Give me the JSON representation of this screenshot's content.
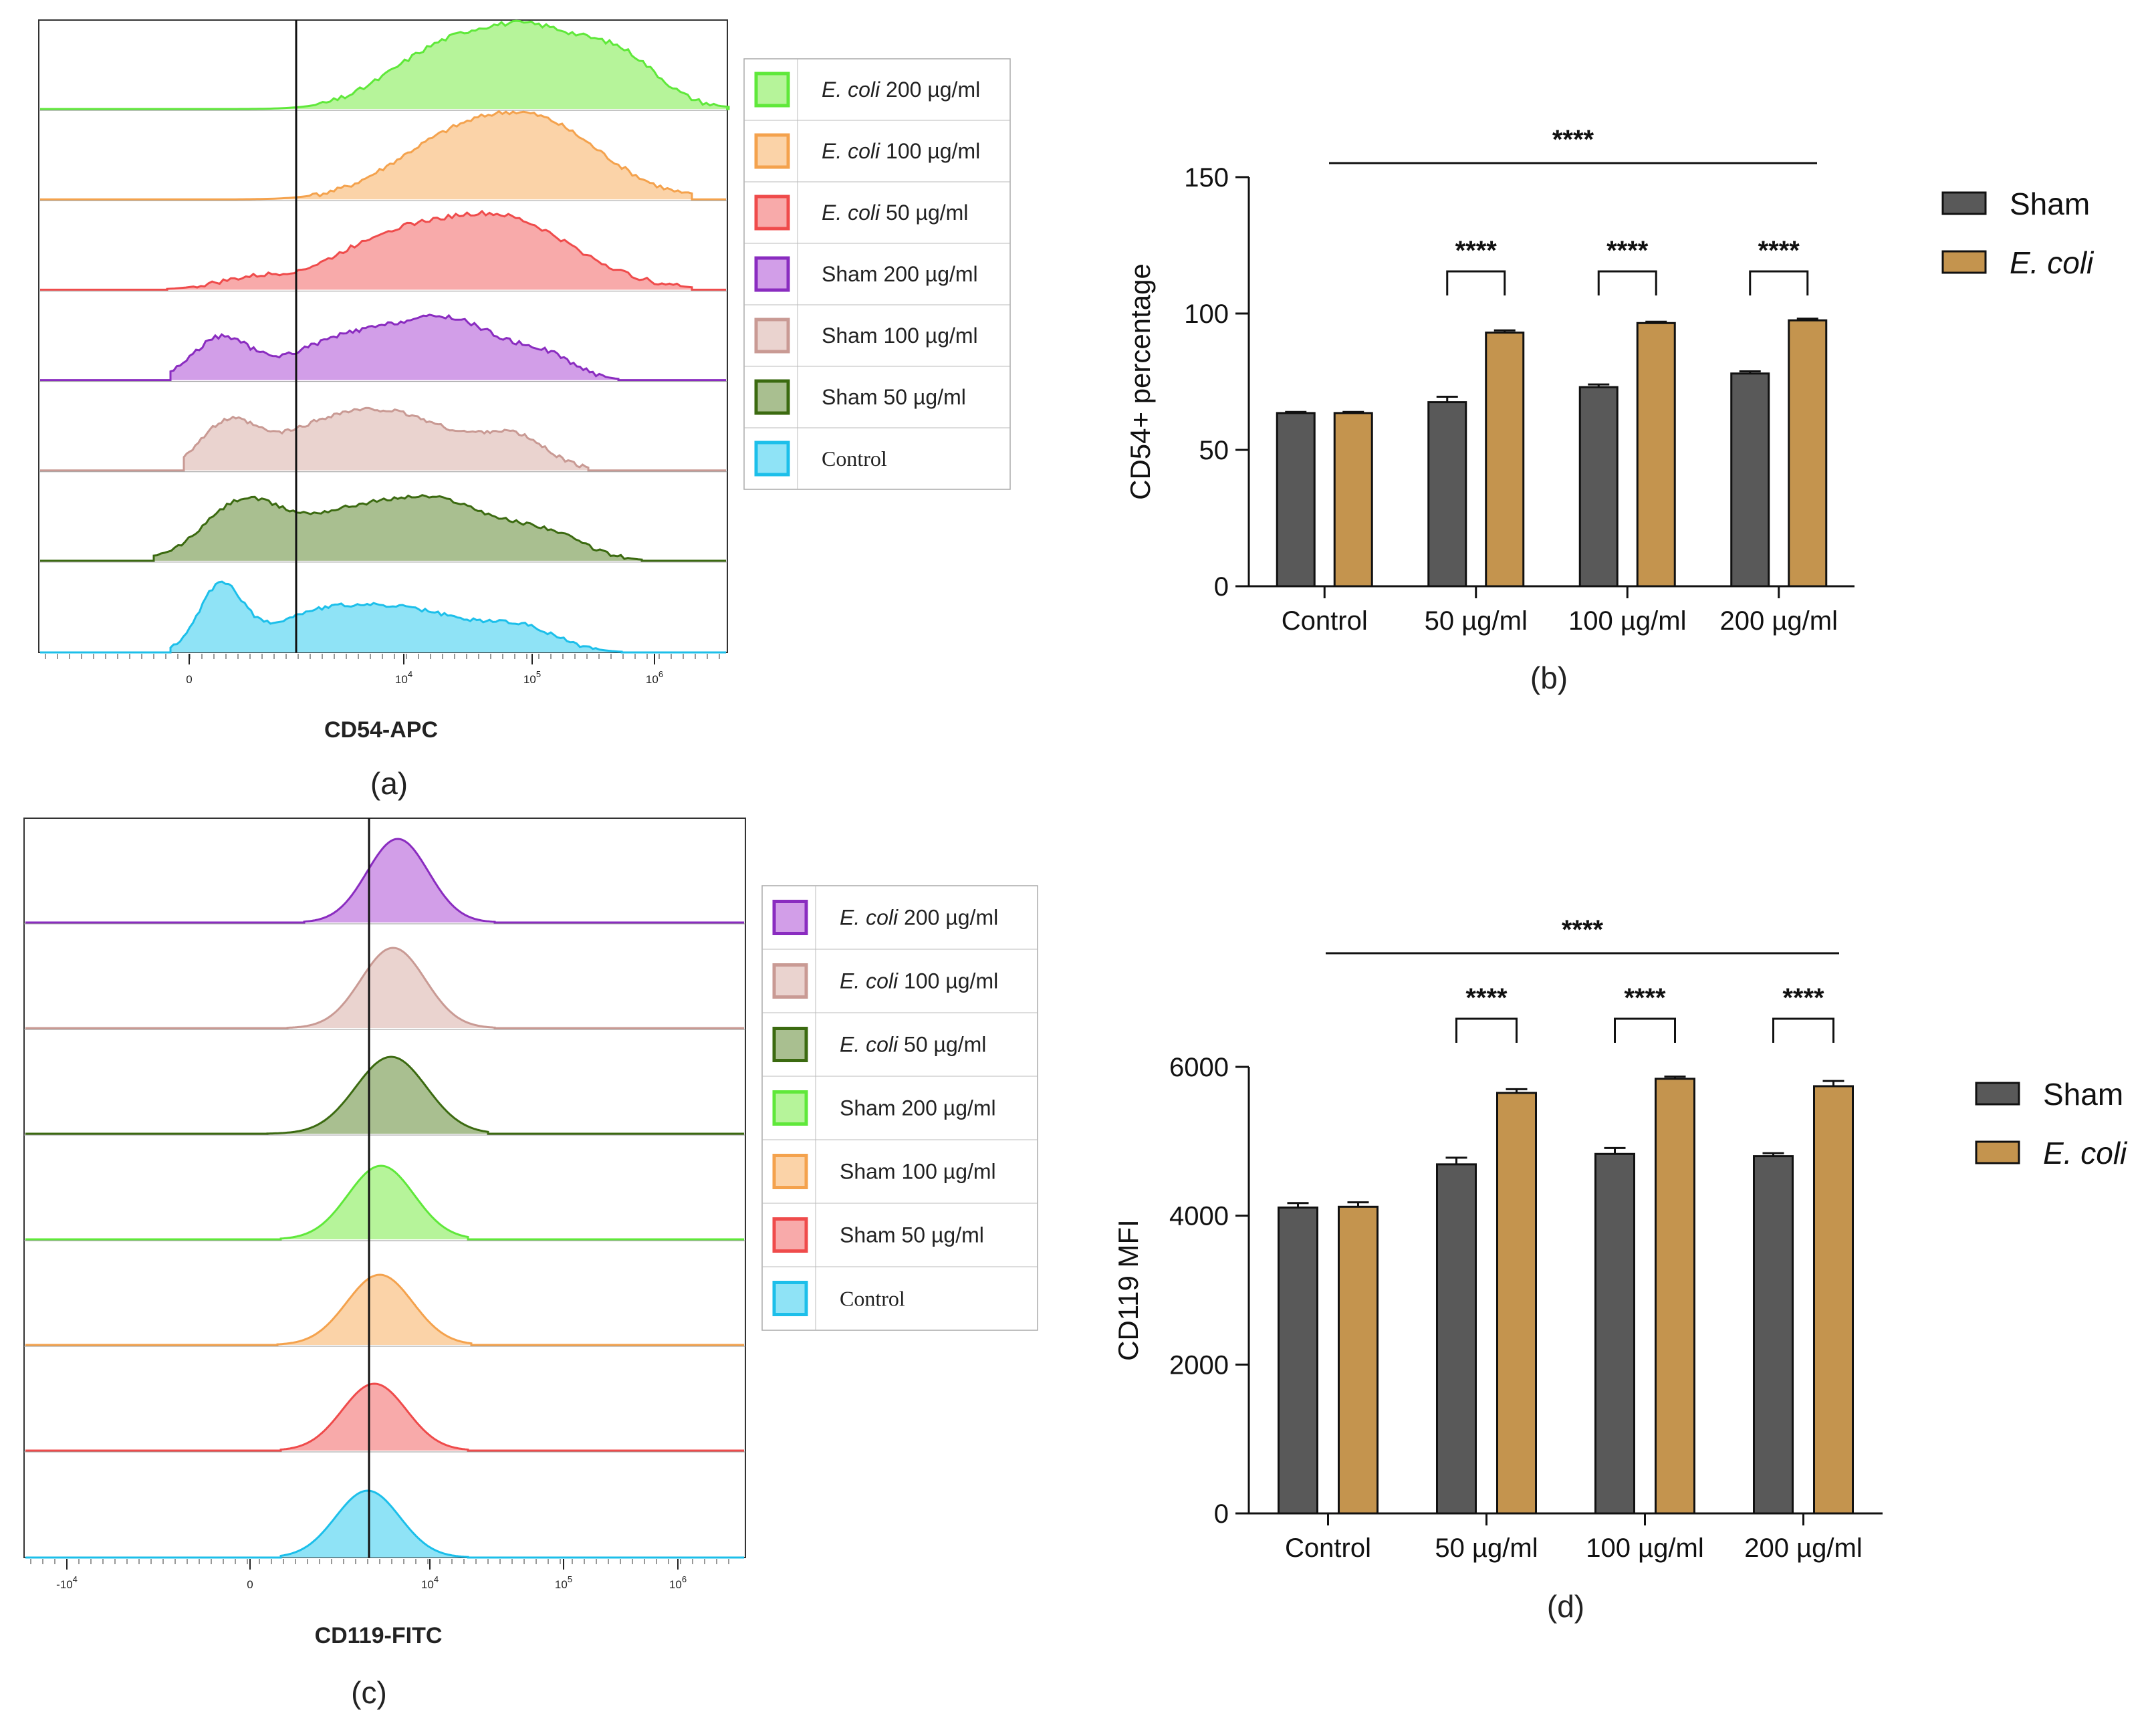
{
  "chart_data": [
    {
      "id": "a",
      "type": "histogram-overlay",
      "caption": "(a)",
      "xlabel": "CD54-APC",
      "x_ticks": [
        "0",
        "10^4",
        "10^5",
        "10^6"
      ],
      "gate": "vertical gate line",
      "legend": [
        {
          "italic": "E. coli",
          "rest": " 200 µg/ml",
          "color": "#5fe83a",
          "fill": "#b6f49a"
        },
        {
          "italic": "E. coli",
          "rest": " 100 µg/ml",
          "color": "#f4a24d",
          "fill": "#fbd3a8"
        },
        {
          "italic": "E. coli",
          "rest": " 50 µg/ml",
          "color": "#ef4b4b",
          "fill": "#f8aaaa"
        },
        {
          "italic": "",
          "rest": "Sham 200 µg/ml",
          "color": "#8a2cc0",
          "fill": "#d29ee8"
        },
        {
          "italic": "",
          "rest": "Sham 100 µg/ml",
          "color": "#c99a94",
          "fill": "#ead3cf"
        },
        {
          "italic": "",
          "rest": "Sham 50 µg/ml",
          "color": "#3b6a10",
          "fill": "#a9bf90"
        },
        {
          "italic": "",
          "rest": "Control",
          "color": "#1cbfea",
          "fill": "#8fe3f6",
          "serif": true
        }
      ]
    },
    {
      "id": "b",
      "type": "bar",
      "caption": "(b)",
      "ylabel": "CD54+ percentage",
      "ylim": [
        0,
        150
      ],
      "yticks": [
        0,
        50,
        100,
        150
      ],
      "categories": [
        "Control",
        "50 µg/ml",
        "100 µg/ml",
        "200 µg/ml"
      ],
      "series": [
        {
          "name": "Sham",
          "color": "#595959",
          "values": [
            63.5,
            67.5,
            73,
            78
          ],
          "errors": [
            0.4,
            2,
            1,
            0.8
          ]
        },
        {
          "name": "E. coli",
          "italic": true,
          "color": "#c4944e",
          "values": [
            63.5,
            93,
            96.5,
            97.5
          ],
          "errors": [
            0.4,
            0.8,
            0.5,
            0.6
          ]
        }
      ],
      "significance": {
        "overall": "****",
        "pairs": [
          "****",
          "****",
          "****"
        ]
      }
    },
    {
      "id": "c",
      "type": "histogram-overlay",
      "caption": "(c)",
      "xlabel": "CD119-FITC",
      "x_ticks": [
        "-10^4",
        "0",
        "10^4",
        "10^5",
        "10^6"
      ],
      "gate": "vertical gate line",
      "legend": [
        {
          "italic": "E. coli",
          "rest": " 200 µg/ml",
          "color": "#8a2cc0",
          "fill": "#d29ee8"
        },
        {
          "italic": "E. coli",
          "rest": " 100 µg/ml",
          "color": "#c99a94",
          "fill": "#ead3cf"
        },
        {
          "italic": "E. coli",
          "rest": " 50 µg/ml",
          "color": "#3b6a10",
          "fill": "#a9bf90"
        },
        {
          "italic": "",
          "rest": "Sham 200 µg/ml",
          "color": "#5fe83a",
          "fill": "#b6f49a"
        },
        {
          "italic": "",
          "rest": "Sham 100 µg/ml",
          "color": "#f4a24d",
          "fill": "#fbd3a8"
        },
        {
          "italic": "",
          "rest": "Sham 50 µg/ml",
          "color": "#ef4b4b",
          "fill": "#f8aaaa"
        },
        {
          "italic": "",
          "rest": "Control",
          "color": "#1cbfea",
          "fill": "#8fe3f6",
          "serif": true
        }
      ]
    },
    {
      "id": "d",
      "type": "bar",
      "caption": "(d)",
      "ylabel": "CD119 MFI",
      "ylim": [
        0,
        6000
      ],
      "yticks": [
        0,
        2000,
        4000,
        6000
      ],
      "categories": [
        "Control",
        "50 µg/ml",
        "100 µg/ml",
        "200 µg/ml"
      ],
      "series": [
        {
          "name": "Sham",
          "color": "#595959",
          "values": [
            4110,
            4690,
            4830,
            4800
          ],
          "errors": [
            60,
            90,
            80,
            40
          ]
        },
        {
          "name": "E. coli",
          "italic": true,
          "color": "#c4944e",
          "values": [
            4120,
            5650,
            5840,
            5740
          ],
          "errors": [
            60,
            50,
            30,
            70
          ]
        }
      ],
      "significance": {
        "overall": "****",
        "pairs": [
          "****",
          "****",
          "****"
        ]
      }
    }
  ]
}
